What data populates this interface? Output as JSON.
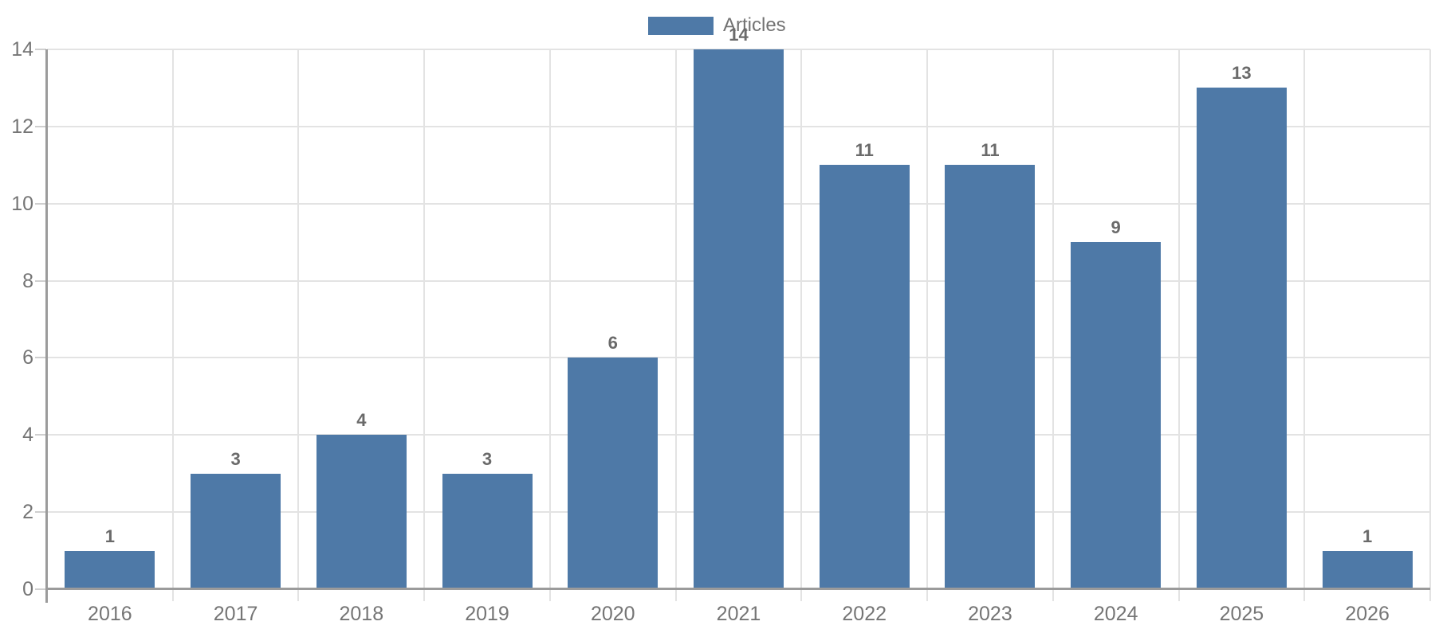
{
  "chart_data": {
    "type": "bar",
    "title": "",
    "categories": [
      "2016",
      "2017",
      "2018",
      "2019",
      "2020",
      "2021",
      "2022",
      "2023",
      "2024",
      "2025",
      "2026"
    ],
    "series": [
      {
        "name": "Articles",
        "values": [
          1,
          3,
          4,
          3,
          6,
          14,
          11,
          11,
          9,
          13,
          1
        ]
      }
    ],
    "xlabel": "",
    "ylabel": "",
    "ylim": [
      0,
      14
    ],
    "yticks": [
      0,
      2,
      4,
      6,
      8,
      10,
      12,
      14
    ],
    "grid": true,
    "legend_position": "top-center",
    "value_labels_shown": true,
    "colors": {
      "bar": "#4e79a7",
      "grid": "#e3e3e3",
      "axis": "#9b9b9b",
      "tick": "#cfcfcf",
      "tick_label": "#757575",
      "value_label": "#6a6a6a",
      "legend_text": "#737373",
      "background": "#ffffff"
    }
  }
}
